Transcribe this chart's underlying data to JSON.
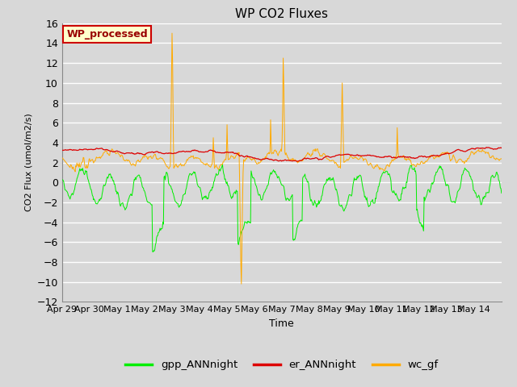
{
  "title": "WP CO2 Fluxes",
  "xlabel": "Time",
  "ylabel": "CO2 Flux (umol/m2/s)",
  "ylim": [
    -12,
    16
  ],
  "yticks": [
    -12,
    -10,
    -8,
    -6,
    -4,
    -2,
    0,
    2,
    4,
    6,
    8,
    10,
    12,
    14,
    16
  ],
  "xtick_labels": [
    "Apr 29",
    "Apr 30",
    "May 1",
    "May 2",
    "May 3",
    "May 4",
    "May 5",
    "May 6",
    "May 7",
    "May 8",
    "May 9",
    "May 10",
    "May 11",
    "May 12",
    "May 13",
    "May 14"
  ],
  "annotation_text": "WP_processed",
  "annotation_bg": "#ffffcc",
  "annotation_edge": "#cc0000",
  "annotation_textcolor": "#990000",
  "colors": {
    "gpp_ANNnight": "#00ee00",
    "er_ANNnight": "#dd0000",
    "wc_gf": "#ffaa00"
  },
  "bg_color": "#d8d8d8",
  "plot_bg": "#d8d8d8",
  "grid_color": "#ffffff",
  "n_days": 16
}
